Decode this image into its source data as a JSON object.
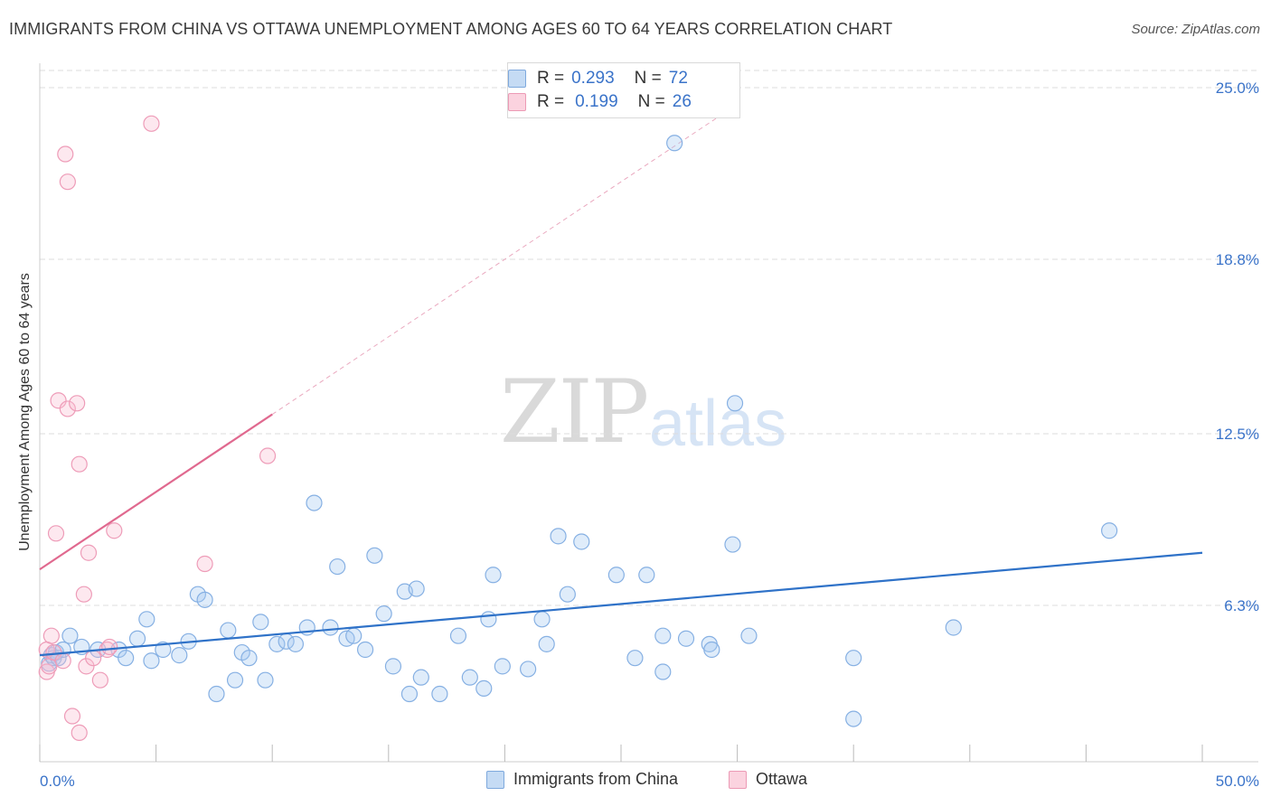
{
  "title": "IMMIGRANTS FROM CHINA VS OTTAWA UNEMPLOYMENT AMONG AGES 60 TO 64 YEARS CORRELATION CHART",
  "source": "Source: ZipAtlas.com",
  "watermark": {
    "zip": "ZIP",
    "atlas": "atlas"
  },
  "legend": {
    "r_label": "R =",
    "n_label": "N =",
    "series1": {
      "r": "0.293",
      "n": "72"
    },
    "series2": {
      "r": "0.199",
      "n": "26"
    }
  },
  "chart_data": {
    "type": "scatter",
    "title": "IMMIGRANTS FROM CHINA VS OTTAWA UNEMPLOYMENT AMONG AGES 60 TO 64 YEARS CORRELATION CHART",
    "xlabel": "",
    "ylabel": "Unemployment Among Ages 60 to 64 years",
    "xlim": [
      0,
      50
    ],
    "ylim": [
      0,
      25.5
    ],
    "x_tick_labels": [
      "0.0%",
      "50.0%"
    ],
    "y_ticks": [
      6.3,
      12.5,
      18.8,
      25.0
    ],
    "y_tick_labels": [
      "6.3%",
      "12.5%",
      "18.8%",
      "25.0%"
    ],
    "grid": true,
    "colors": {
      "china": "#5b9bd5",
      "china_line": "#2f72c8",
      "ottawa": "#ee8fae",
      "ottawa_line": "#e0698f",
      "axis_text": "#3a73c9"
    },
    "series": [
      {
        "name": "Immigrants from China",
        "trend": {
          "x": [
            0,
            50
          ],
          "y": [
            4.5,
            8.2
          ]
        },
        "points": [
          [
            0.4,
            4.2
          ],
          [
            0.5,
            4.5
          ],
          [
            0.6,
            4.4
          ],
          [
            0.7,
            4.6
          ],
          [
            0.8,
            4.4
          ],
          [
            1.0,
            4.7
          ],
          [
            1.3,
            5.2
          ],
          [
            1.8,
            4.8
          ],
          [
            2.5,
            4.7
          ],
          [
            3.4,
            4.7
          ],
          [
            3.7,
            4.4
          ],
          [
            4.2,
            5.1
          ],
          [
            4.6,
            5.8
          ],
          [
            4.8,
            4.3
          ],
          [
            5.3,
            4.7
          ],
          [
            6.0,
            4.5
          ],
          [
            6.4,
            5.0
          ],
          [
            6.8,
            6.7
          ],
          [
            7.1,
            6.5
          ],
          [
            7.6,
            3.1
          ],
          [
            8.1,
            5.4
          ],
          [
            8.4,
            3.6
          ],
          [
            8.7,
            4.6
          ],
          [
            9.0,
            4.4
          ],
          [
            9.5,
            5.7
          ],
          [
            9.7,
            3.6
          ],
          [
            10.2,
            4.9
          ],
          [
            10.6,
            5.0
          ],
          [
            11.0,
            4.9
          ],
          [
            11.5,
            5.5
          ],
          [
            11.8,
            10.0
          ],
          [
            12.5,
            5.5
          ],
          [
            12.8,
            7.7
          ],
          [
            13.2,
            5.1
          ],
          [
            13.5,
            5.2
          ],
          [
            14.0,
            4.7
          ],
          [
            14.4,
            8.1
          ],
          [
            14.8,
            6.0
          ],
          [
            15.2,
            4.1
          ],
          [
            15.7,
            6.8
          ],
          [
            15.9,
            3.1
          ],
          [
            16.2,
            6.9
          ],
          [
            16.4,
            3.7
          ],
          [
            17.2,
            3.1
          ],
          [
            18.0,
            5.2
          ],
          [
            18.5,
            3.7
          ],
          [
            19.1,
            3.3
          ],
          [
            19.3,
            5.8
          ],
          [
            19.5,
            7.4
          ],
          [
            19.9,
            4.1
          ],
          [
            21.0,
            4.0
          ],
          [
            21.6,
            5.8
          ],
          [
            21.8,
            4.9
          ],
          [
            22.3,
            8.8
          ],
          [
            22.7,
            6.7
          ],
          [
            23.3,
            8.6
          ],
          [
            24.8,
            7.4
          ],
          [
            25.6,
            4.4
          ],
          [
            26.1,
            7.4
          ],
          [
            26.8,
            3.9
          ],
          [
            26.8,
            5.2
          ],
          [
            27.3,
            23.0
          ],
          [
            27.8,
            5.1
          ],
          [
            28.8,
            4.9
          ],
          [
            28.9,
            4.7
          ],
          [
            29.8,
            8.5
          ],
          [
            29.9,
            13.6
          ],
          [
            30.5,
            5.2
          ],
          [
            35.0,
            4.4
          ],
          [
            35.0,
            2.2
          ],
          [
            39.3,
            5.5
          ],
          [
            46.0,
            9.0
          ]
        ]
      },
      {
        "name": "Ottawa",
        "trend": {
          "x": [
            0,
            10
          ],
          "y": [
            7.6,
            13.2
          ]
        },
        "trend_extension": {
          "x": [
            10,
            30
          ],
          "y": [
            13.2,
            24.4
          ]
        },
        "points": [
          [
            0.3,
            4.7
          ],
          [
            0.3,
            3.9
          ],
          [
            0.4,
            4.1
          ],
          [
            0.5,
            5.2
          ],
          [
            0.6,
            4.6
          ],
          [
            0.8,
            13.7
          ],
          [
            0.7,
            8.9
          ],
          [
            1.0,
            4.3
          ],
          [
            1.1,
            22.6
          ],
          [
            1.2,
            21.6
          ],
          [
            1.2,
            13.4
          ],
          [
            1.4,
            2.3
          ],
          [
            1.6,
            13.6
          ],
          [
            1.7,
            1.7
          ],
          [
            1.7,
            11.4
          ],
          [
            1.9,
            6.7
          ],
          [
            2.0,
            4.1
          ],
          [
            2.1,
            8.2
          ],
          [
            2.3,
            4.4
          ],
          [
            2.6,
            3.6
          ],
          [
            2.9,
            4.7
          ],
          [
            3.2,
            9.0
          ],
          [
            4.8,
            23.7
          ],
          [
            7.1,
            7.8
          ],
          [
            9.8,
            11.7
          ],
          [
            3.0,
            4.8
          ]
        ]
      }
    ]
  }
}
